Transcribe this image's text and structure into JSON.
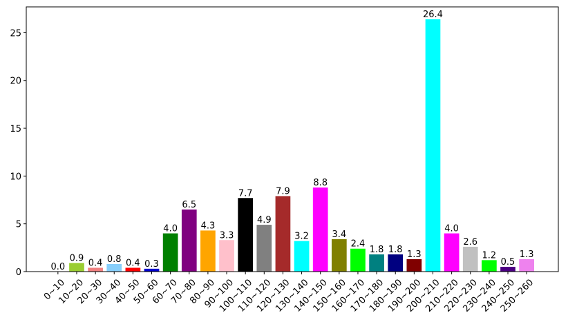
{
  "chart_data": {
    "type": "bar",
    "categories": [
      "0~10",
      "10~20",
      "20~30",
      "30~40",
      "40~50",
      "50~60",
      "60~70",
      "70~80",
      "80~90",
      "90~100",
      "100~110",
      "110~120",
      "120~130",
      "130~140",
      "140~150",
      "150~160",
      "160~170",
      "170~180",
      "180~190",
      "190~200",
      "200~210",
      "210~220",
      "220~230",
      "230~240",
      "240~250",
      "250~260"
    ],
    "values": [
      0.0,
      0.9,
      0.4,
      0.8,
      0.4,
      0.3,
      4.0,
      6.5,
      4.3,
      3.3,
      7.7,
      4.9,
      7.9,
      3.2,
      8.8,
      3.4,
      2.4,
      1.8,
      1.8,
      1.3,
      26.4,
      4.0,
      2.6,
      1.2,
      0.5,
      1.3
    ],
    "value_labels": [
      "0.0",
      "0.9",
      "0.4",
      "0.8",
      "0.4",
      "0.3",
      "4.0",
      "6.5",
      "4.3",
      "3.3",
      "7.7",
      "4.9",
      "7.9",
      "3.2",
      "8.8",
      "3.4",
      "2.4",
      "1.8",
      "1.8",
      "1.3",
      "26.4",
      "4.0",
      "2.6",
      "1.2",
      "0.5",
      "1.3"
    ],
    "colors": [
      "#1f77b4",
      "#9acd32",
      "#f08080",
      "#87cefa",
      "#ff0000",
      "#0000cd",
      "#008000",
      "#800080",
      "#ffa500",
      "#ffc0cb",
      "#000000",
      "#808080",
      "#a52a2a",
      "#00ffff",
      "#ff00ff",
      "#808000",
      "#00ff00",
      "#008080",
      "#000080",
      "#800000",
      "#00ffff",
      "#ff00ff",
      "#c0c0c0",
      "#00ff00",
      "#4b0082",
      "#ee82ee"
    ],
    "ylim": [
      0,
      27.7
    ],
    "yticks": [
      0,
      5,
      10,
      15,
      20,
      25
    ]
  }
}
